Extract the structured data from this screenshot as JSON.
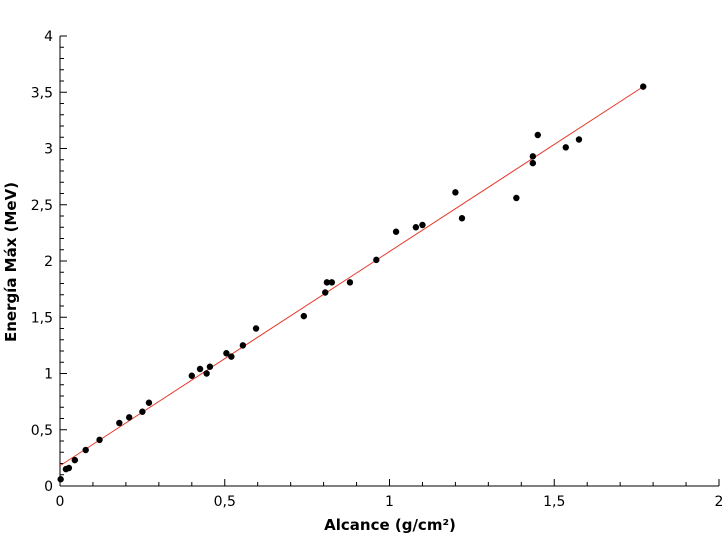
{
  "chart_data": {
    "type": "scatter",
    "xlabel": "Alcance (g/cm²)",
    "ylabel": "Energía Máx (MeV)",
    "xlim": [
      0,
      2
    ],
    "ylim": [
      0,
      4
    ],
    "xticks": [
      0,
      0.5,
      1,
      1.5,
      2
    ],
    "xtick_labels": [
      "0",
      "0,5",
      "1",
      "1,5",
      "2"
    ],
    "yticks": [
      0,
      0.5,
      1,
      1.5,
      2,
      2.5,
      3,
      3.5,
      4
    ],
    "ytick_labels": [
      "0",
      "0,5",
      "1",
      "1,5",
      "2",
      "2,5",
      "3",
      "3,5",
      "4"
    ],
    "grid": false,
    "series": [
      {
        "type": "scatter",
        "color": "#000000",
        "x": [
          0.002,
          0.018,
          0.027,
          0.045,
          0.078,
          0.12,
          0.18,
          0.21,
          0.25,
          0.27,
          0.4,
          0.425,
          0.445,
          0.455,
          0.505,
          0.52,
          0.555,
          0.595,
          0.74,
          0.805,
          0.81,
          0.825,
          0.88,
          0.96,
          1.02,
          1.08,
          1.1,
          1.2,
          1.22,
          1.385,
          1.435,
          1.435,
          1.45,
          1.535,
          1.575,
          1.77
        ],
        "y": [
          0.06,
          0.15,
          0.16,
          0.23,
          0.32,
          0.41,
          0.56,
          0.61,
          0.66,
          0.74,
          0.98,
          1.04,
          1.0,
          1.06,
          1.18,
          1.15,
          1.25,
          1.4,
          1.51,
          1.72,
          1.81,
          1.81,
          1.81,
          2.01,
          2.26,
          2.3,
          2.32,
          2.61,
          2.38,
          2.56,
          2.87,
          2.93,
          3.12,
          3.01,
          3.08,
          3.55
        ]
      },
      {
        "type": "line",
        "color": "#e8392c",
        "x": [
          0,
          1.77
        ],
        "y": [
          0.18,
          3.55
        ]
      }
    ]
  }
}
